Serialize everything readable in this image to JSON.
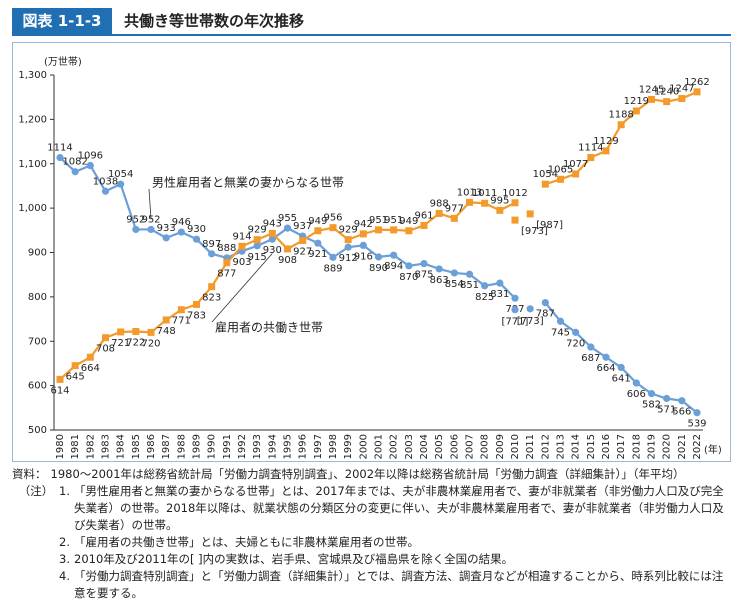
{
  "header": {
    "figure_no": "図表 1-1-3",
    "title": "共働き等世帯数の年次推移"
  },
  "chart_data": {
    "type": "line",
    "y_unit": "(万世帯)",
    "x_unit": "(年)",
    "categories": [
      "1980",
      "1981",
      "1982",
      "1983",
      "1984",
      "1985",
      "1986",
      "1987",
      "1988",
      "1989",
      "1990",
      "1991",
      "1992",
      "1993",
      "1994",
      "1995",
      "1996",
      "1997",
      "1998",
      "1999",
      "2000",
      "2001",
      "2002",
      "2003",
      "2004",
      "2005",
      "2006",
      "2007",
      "2008",
      "2009",
      "2010",
      "2011",
      "2012",
      "2013",
      "2014",
      "2015",
      "2016",
      "2017",
      "2018",
      "2019",
      "2020",
      "2021",
      "2022"
    ],
    "ylim": [
      500,
      1300
    ],
    "yticks": [
      500,
      600,
      700,
      800,
      900,
      {
        "value": 1000,
        "label": "1,000"
      },
      {
        "value": 1100,
        "label": "1,100"
      },
      {
        "value": 1200,
        "label": "1,200"
      },
      {
        "value": 1300,
        "label": "1,300"
      }
    ],
    "grid": false,
    "series": [
      {
        "name": "男性雇用者と無業の妻からなる世帯",
        "color": "#6b9fd8",
        "marker": "circle",
        "values": [
          1114,
          1082,
          1096,
          1038,
          1054,
          952,
          952,
          933,
          946,
          930,
          897,
          888,
          903,
          915,
          930,
          955,
          937,
          921,
          889,
          912,
          916,
          890,
          894,
          870,
          875,
          863,
          854,
          851,
          825,
          831,
          797,
          null,
          787,
          745,
          720,
          687,
          664,
          641,
          606,
          582,
          571,
          566,
          539
        ],
        "bracket_values": [
          null,
          null,
          null,
          null,
          null,
          null,
          null,
          null,
          null,
          null,
          null,
          null,
          null,
          null,
          null,
          null,
          null,
          null,
          null,
          null,
          null,
          null,
          null,
          null,
          null,
          null,
          null,
          null,
          null,
          null,
          771,
          773,
          null,
          null,
          null,
          null,
          null,
          null,
          null,
          null,
          null,
          null,
          null
        ],
        "bracket_labels": [
          null,
          null,
          null,
          null,
          null,
          null,
          null,
          null,
          null,
          null,
          null,
          null,
          null,
          null,
          null,
          null,
          null,
          null,
          null,
          null,
          null,
          null,
          null,
          null,
          null,
          null,
          null,
          null,
          null,
          null,
          "[771]",
          "[773]",
          null,
          null,
          null,
          null,
          null,
          null,
          null,
          null,
          null,
          null,
          null
        ]
      },
      {
        "name": "雇用者の共働き世帯",
        "color": "#f39a2b",
        "marker": "square",
        "values": [
          614,
          645,
          664,
          708,
          721,
          722,
          720,
          748,
          771,
          783,
          823,
          877,
          914,
          929,
          943,
          908,
          927,
          949,
          956,
          929,
          942,
          951,
          951,
          949,
          961,
          988,
          977,
          1013,
          1011,
          995,
          1012,
          null,
          1054,
          1065,
          1077,
          1114,
          1129,
          1188,
          1219,
          1245,
          1240,
          1247,
          1262
        ],
        "bracket_values": [
          null,
          null,
          null,
          null,
          null,
          null,
          null,
          null,
          null,
          null,
          null,
          null,
          null,
          null,
          null,
          null,
          null,
          null,
          null,
          null,
          null,
          null,
          null,
          null,
          null,
          null,
          null,
          null,
          null,
          null,
          973,
          987,
          null,
          null,
          null,
          null,
          null,
          null,
          null,
          null,
          null,
          null,
          null
        ],
        "bracket_labels": [
          null,
          null,
          null,
          null,
          null,
          null,
          null,
          null,
          null,
          null,
          null,
          null,
          null,
          null,
          null,
          null,
          null,
          null,
          null,
          null,
          null,
          null,
          null,
          null,
          null,
          null,
          null,
          null,
          null,
          null,
          "[973]",
          "[987]",
          null,
          null,
          null,
          null,
          null,
          null,
          null,
          null,
          null,
          null,
          null
        ]
      }
    ]
  },
  "notes": [
    {
      "label": "資料：",
      "text": "1980～2001年は総務省統計局「労働力調査特別調査」、2002年以降は総務省統計局「労働力調査（詳細集計）」（年平均）"
    },
    {
      "label": "（注）　1.",
      "text": "「男性雇用者と無業の妻からなる世帯」とは、2017年までは、夫が非農林業雇用者で、妻が非就業者（非労働力人口及び完全失業者）の世帯。2018年以降は、就業状態の分類区分の変更に伴い、夫が非農林業雇用者で、妻が非就業者（非労働力人口及び失業者）の世帯。"
    },
    {
      "label": "2.",
      "text": "「雇用者の共働き世帯」とは、夫婦ともに非農林業雇用者の世帯。"
    },
    {
      "label": "3.",
      "text": "2010年及び2011年の[ ]内の実数は、岩手県、宮城県及び福島県を除く全国の結果。"
    },
    {
      "label": "4.",
      "text": "「労働力調査特別調査」と「労働力調査（詳細集計）」とでは、調査方法、調査月などが相違することから、時系列比較には注意を要する。"
    }
  ]
}
